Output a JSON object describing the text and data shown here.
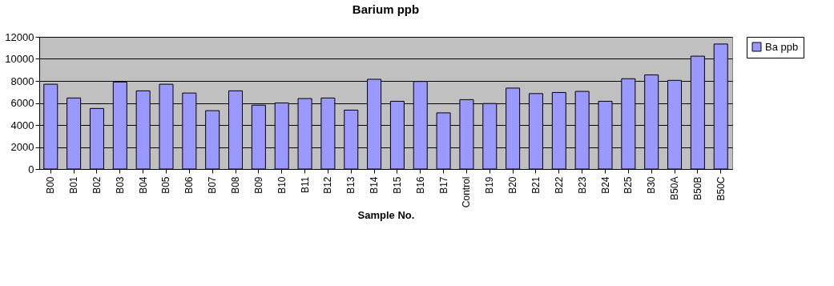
{
  "chart_data": {
    "type": "bar",
    "title": "Barium ppb",
    "xlabel": "Sample No.",
    "categories": [
      "B00",
      "B01",
      "B02",
      "B03",
      "B04",
      "B05",
      "B06",
      "B07",
      "B08",
      "B09",
      "B10",
      "B11",
      "B12",
      "B13",
      "B14",
      "B15",
      "B16",
      "B17",
      "Control",
      "B19",
      "B20",
      "B21",
      "B22",
      "B23",
      "B24",
      "B25",
      "B30",
      "B50A",
      "B50B",
      "B50C"
    ],
    "series": [
      {
        "name": "Ba ppb",
        "color": "#9999ff",
        "values": [
          7700,
          6450,
          5500,
          7900,
          7100,
          7700,
          6900,
          5300,
          7100,
          5800,
          6000,
          6400,
          6450,
          5350,
          8150,
          6150,
          7950,
          5100,
          6300,
          5950,
          7350,
          6850,
          6950,
          7050,
          6150,
          8200,
          8550,
          8050,
          10250,
          11350
        ]
      }
    ],
    "ylim": [
      0,
      12000
    ],
    "yticks": [
      0,
      2000,
      4000,
      6000,
      8000,
      10000,
      12000
    ],
    "grid": "y",
    "legend": "right"
  }
}
